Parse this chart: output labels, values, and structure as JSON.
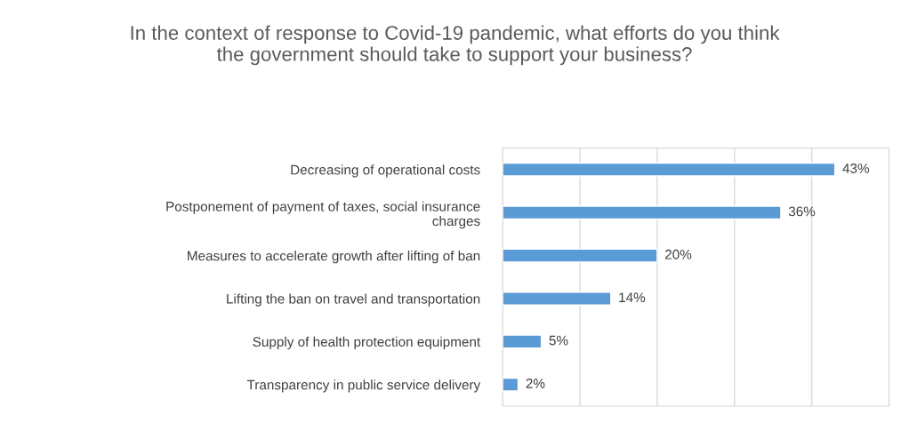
{
  "chart_data": {
    "type": "bar",
    "orientation": "horizontal",
    "title": "In the context of response to Covid-19 pandemic, what efforts do you think the government should take to support your business?",
    "categories": [
      "Decreasing of operational costs",
      "Postponement of payment of taxes, social insurance charges",
      "Measures to accelerate growth after lifting of ban",
      "Lifting the ban on travel and transportation",
      "Supply of health protection equipment",
      "Transparency in public service delivery"
    ],
    "values": [
      43,
      36,
      20,
      14,
      5,
      2
    ],
    "value_labels": [
      "43%",
      "36%",
      "20%",
      "14%",
      "5%",
      "2%"
    ],
    "color": "#5b9bd5",
    "xlim": [
      0,
      50
    ],
    "xticks": [
      {
        "value": 0,
        "label": null
      },
      {
        "value": 10,
        "label": null
      },
      {
        "value": 20,
        "label": null
      },
      {
        "value": 30,
        "label": null
      },
      {
        "value": 40,
        "label": null
      },
      {
        "value": 50,
        "label": null
      }
    ],
    "tick_labels": "y",
    "grid": "x",
    "legend": false
  }
}
